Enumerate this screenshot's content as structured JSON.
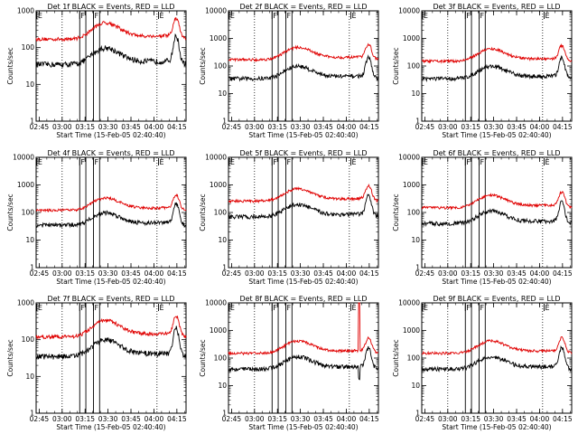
{
  "chart_data": {
    "type": "line",
    "layout": "3x3 grid",
    "xlabel": "Start Time (15-Feb-05 02:40:40)",
    "ylabel": "Counts/sec",
    "yscale": "log",
    "xtick_labels": [
      "02:45",
      "03:00",
      "03:15",
      "03:30",
      "03:45",
      "04:00",
      "04:15"
    ],
    "xtick_minutes": [
      45,
      60,
      75,
      90,
      105,
      120,
      135
    ],
    "xlim_minutes": [
      43,
      141
    ],
    "minute_note": "minutes after 02:00",
    "legend": {
      "black": "Events",
      "red": "LLD"
    },
    "markers": [
      {
        "label": "E",
        "minute": 43.5
      },
      {
        "label": "F",
        "minute": 71.5
      },
      {
        "label": "F",
        "minute": 80.5
      },
      {
        "label": "E",
        "minute": 123
      }
    ],
    "panels": [
      {
        "title": "Det 1f BLACK = Events, RED = LLD",
        "ylim": [
          1,
          1000
        ],
        "ytick_labels": [
          "1",
          "10",
          "100",
          "1000"
        ],
        "gates": [
          71.5,
          75.5,
          80.5,
          84.5
        ],
        "dotted": [
          60,
          122
        ],
        "events_base": 35,
        "lld_base": 170,
        "spike": false
      },
      {
        "title": "Det 2f BLACK = Events, RED = LLD",
        "ylim": [
          1,
          10000
        ],
        "ytick_labels": [
          "1",
          "10",
          "100",
          "1000",
          "10000"
        ],
        "gates": [
          71.5,
          75.5,
          80.5,
          84.5
        ],
        "dotted": [
          60,
          122
        ],
        "events_base": 35,
        "lld_base": 170,
        "spike": false
      },
      {
        "title": "Det 3f BLACK = Events, RED = LLD",
        "ylim": [
          1,
          10000
        ],
        "ytick_labels": [
          "1",
          "10",
          "100",
          "1000",
          "10000"
        ],
        "gates": [
          71.5,
          75.5,
          80.5,
          84.5
        ],
        "dotted": [
          60,
          122
        ],
        "events_base": 35,
        "lld_base": 150,
        "spike": false
      },
      {
        "title": "Det 4f BLACK = Events, RED = LLD",
        "ylim": [
          1,
          10000
        ],
        "ytick_labels": [
          "1",
          "10",
          "100",
          "1000",
          "10000"
        ],
        "gates": [
          71.5,
          75.5,
          80.5,
          84.5
        ],
        "dotted": [
          60,
          122
        ],
        "events_base": 35,
        "lld_base": 120,
        "spike": false
      },
      {
        "title": "Det 5f BLACK = Events, RED = LLD",
        "ylim": [
          1,
          10000
        ],
        "ytick_labels": [
          "1",
          "10",
          "100",
          "1000",
          "10000"
        ],
        "gates": [
          71.5,
          75.5,
          80.5,
          84.5
        ],
        "dotted": [
          60,
          122
        ],
        "events_base": 70,
        "lld_base": 260,
        "spike": false
      },
      {
        "title": "Det 6f BLACK = Events, RED = LLD",
        "ylim": [
          1,
          10000
        ],
        "ytick_labels": [
          "1",
          "10",
          "100",
          "1000",
          "10000"
        ],
        "gates": [
          71.5,
          75.5,
          80.5,
          84.5
        ],
        "dotted": [
          60,
          122
        ],
        "events_base": 40,
        "lld_base": 150,
        "spike": false
      },
      {
        "title": "Det 7f BLACK = Events, RED = LLD",
        "ylim": [
          1,
          1000
        ],
        "ytick_labels": [
          "1",
          "10",
          "100",
          "1000"
        ],
        "gates": [
          71.5,
          75.5,
          80.5,
          84.5
        ],
        "dotted": [
          60,
          122
        ],
        "events_base": 35,
        "lld_base": 120,
        "spike": false
      },
      {
        "title": "Det 8f BLACK = Events, RED = LLD",
        "ylim": [
          1,
          10000
        ],
        "ytick_labels": [
          "1",
          "10",
          "100",
          "1000",
          "10000"
        ],
        "gates": [
          71.5,
          75.5,
          80.5,
          84.5
        ],
        "dotted": [
          60,
          122
        ],
        "events_base": 40,
        "lld_base": 150,
        "spike": true
      },
      {
        "title": "Det 9f BLACK = Events, RED = LLD",
        "ylim": [
          1,
          10000
        ],
        "ytick_labels": [
          "1",
          "10",
          "100",
          "1000",
          "10000"
        ],
        "gates": [
          71.5,
          75.5,
          80.5,
          84.5
        ],
        "dotted": [
          60,
          122
        ],
        "events_base": 40,
        "lld_base": 150,
        "spike": false
      }
    ]
  },
  "colors": {
    "events": "#000000",
    "lld": "#e00000",
    "axes": "#000000",
    "background": "#ffffff"
  }
}
